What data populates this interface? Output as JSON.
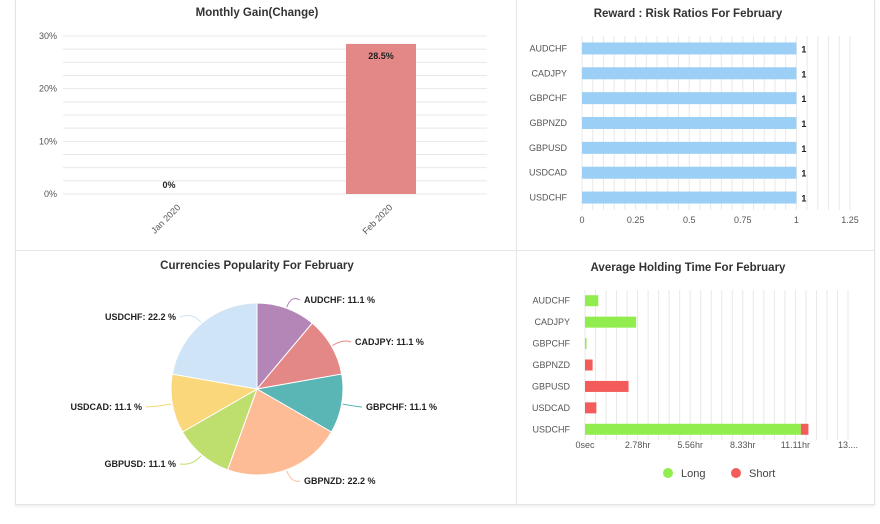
{
  "colors": {
    "long": "#90ed4d",
    "short": "#f45b5b",
    "grid": "#e8e8e8"
  },
  "chart_data": [
    {
      "id": "monthly-gain",
      "type": "bar",
      "title": "Monthly Gain(Change)",
      "categories": [
        "Jan 2020",
        "Feb 2020"
      ],
      "values": [
        0,
        28.5
      ],
      "data_labels": [
        "0%",
        "28.5%"
      ],
      "yticks": [
        "0%",
        "10%",
        "20%",
        "30%"
      ],
      "ylim": [
        0,
        30
      ],
      "bar_color": "#e38886",
      "grid": true
    },
    {
      "id": "reward-risk",
      "type": "bar",
      "orientation": "horizontal",
      "title": "Reward : Risk Ratios For February",
      "categories": [
        "AUDCHF",
        "CADJPY",
        "GBPCHF",
        "GBPNZD",
        "GBPUSD",
        "USDCAD",
        "USDCHF"
      ],
      "values": [
        1,
        1,
        1,
        1,
        1,
        1,
        1
      ],
      "data_labels": [
        "1",
        "1",
        "1",
        "1",
        "1",
        "1",
        "1"
      ],
      "xticks": [
        "0",
        "0.25",
        "0.5",
        "0.75",
        "1",
        "1.25"
      ],
      "xlim": [
        0,
        1.25
      ],
      "bar_color": "#9ccff5",
      "grid": true
    },
    {
      "id": "currencies-popularity",
      "type": "pie",
      "title": "Currencies Popularity For February",
      "slices": [
        {
          "label": "AUDCHF: 11.1 %",
          "value": 11.1,
          "color": "#b386b7"
        },
        {
          "label": "CADJPY: 11.1 %",
          "value": 11.1,
          "color": "#e38886"
        },
        {
          "label": "GBPCHF: 11.1 %",
          "value": 11.1,
          "color": "#5ab5b5"
        },
        {
          "label": "GBPNZD: 22.2 %",
          "value": 22.2,
          "color": "#fdbc96"
        },
        {
          "label": "GBPUSD: 11.1 %",
          "value": 11.1,
          "color": "#bede6d"
        },
        {
          "label": "USDCAD: 11.1 %",
          "value": 11.1,
          "color": "#f9d77a"
        },
        {
          "label": "USDCHF: 22.2 %",
          "value": 22.2,
          "color": "#cfe5f7"
        }
      ]
    },
    {
      "id": "avg-holding-time",
      "type": "bar",
      "orientation": "horizontal",
      "stacked": true,
      "title": "Average Holding Time For February",
      "categories": [
        "AUDCHF",
        "CADJPY",
        "GBPCHF",
        "GBPNZD",
        "GBPUSD",
        "USDCAD",
        "USDCHF"
      ],
      "unit": "hr",
      "xticks": [
        "0sec",
        "2.78hr",
        "5.56hr",
        "8.33hr",
        "11.11hr",
        "13...."
      ],
      "xlim": [
        0,
        13.89
      ],
      "series": [
        {
          "name": "Long",
          "color": "#90ed4d",
          "values": [
            0.7,
            2.7,
            0.05,
            0,
            0,
            0,
            11.4
          ]
        },
        {
          "name": "Short",
          "color": "#f45b5b",
          "values": [
            0,
            0,
            0,
            0.4,
            2.3,
            0.6,
            0.4
          ]
        }
      ],
      "legend": "bottom-center",
      "grid": true
    }
  ]
}
